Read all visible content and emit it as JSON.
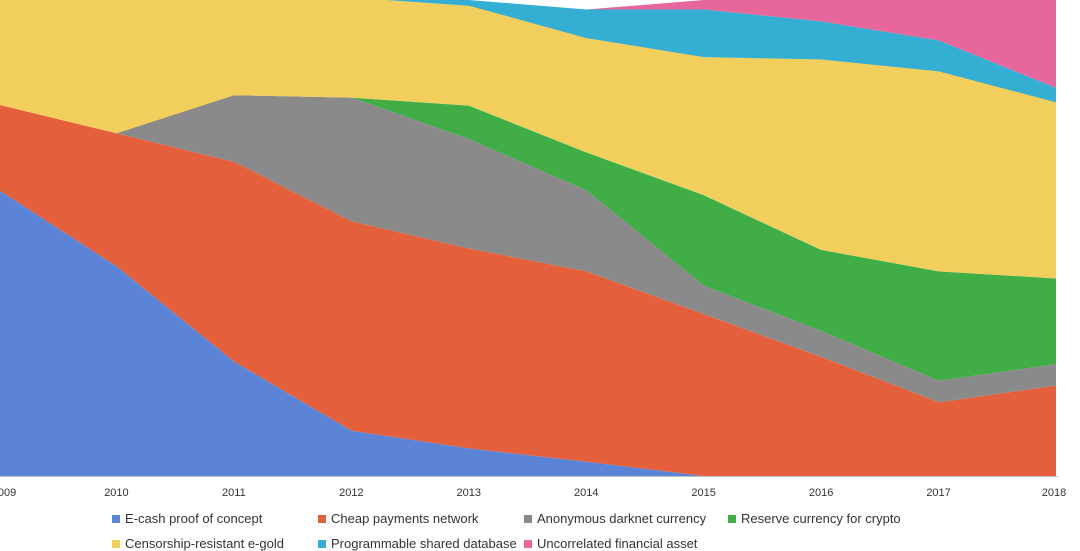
{
  "chart_data": {
    "type": "area",
    "stacked": true,
    "normalized": true,
    "x": [
      "2009",
      "2010",
      "2011",
      "2012",
      "2013",
      "2014",
      "2015",
      "2016",
      "2017",
      "2018"
    ],
    "ylim": [
      0,
      1
    ],
    "grid": false,
    "legend_position": "bottom",
    "series": [
      {
        "name": "E-cash proof of concept",
        "color": "#5b84d6",
        "values": [
          0.6,
          0.44,
          0.24,
          0.095,
          0.058,
          0.03,
          0.0,
          0.0,
          0.0,
          0.0
        ]
      },
      {
        "name": "Cheap payments network",
        "color": "#e4603c",
        "values": [
          0.18,
          0.28,
          0.42,
          0.44,
          0.42,
          0.4,
          0.34,
          0.25,
          0.155,
          0.19
        ]
      },
      {
        "name": "Anonymous darknet currency",
        "color": "#8a8a8a",
        "values": [
          0.0,
          0.0,
          0.14,
          0.26,
          0.23,
          0.17,
          0.06,
          0.055,
          0.045,
          0.045
        ]
      },
      {
        "name": "Reserve currency for crypto",
        "color": "#40ad47",
        "values": [
          0.0,
          0.0,
          0.0,
          0.0,
          0.07,
          0.08,
          0.19,
          0.17,
          0.23,
          0.18
        ]
      },
      {
        "name": "Censorship-resistant e-gold",
        "color": "#f2cf5c",
        "values": [
          0.22,
          0.28,
          0.2,
          0.21,
          0.21,
          0.24,
          0.29,
          0.4,
          0.42,
          0.37
        ]
      },
      {
        "name": "Programmable shared database",
        "color": "#34aed2",
        "values": [
          0.0,
          0.0,
          0.0,
          0.0,
          0.012,
          0.06,
          0.1,
          0.08,
          0.065,
          0.03
        ]
      },
      {
        "name": "Uncorrelated financial asset",
        "color": "#e6679b",
        "values": [
          0.0,
          0.0,
          0.0,
          0.0,
          0.0,
          0.0,
          0.02,
          0.045,
          0.085,
          0.185
        ]
      }
    ]
  }
}
